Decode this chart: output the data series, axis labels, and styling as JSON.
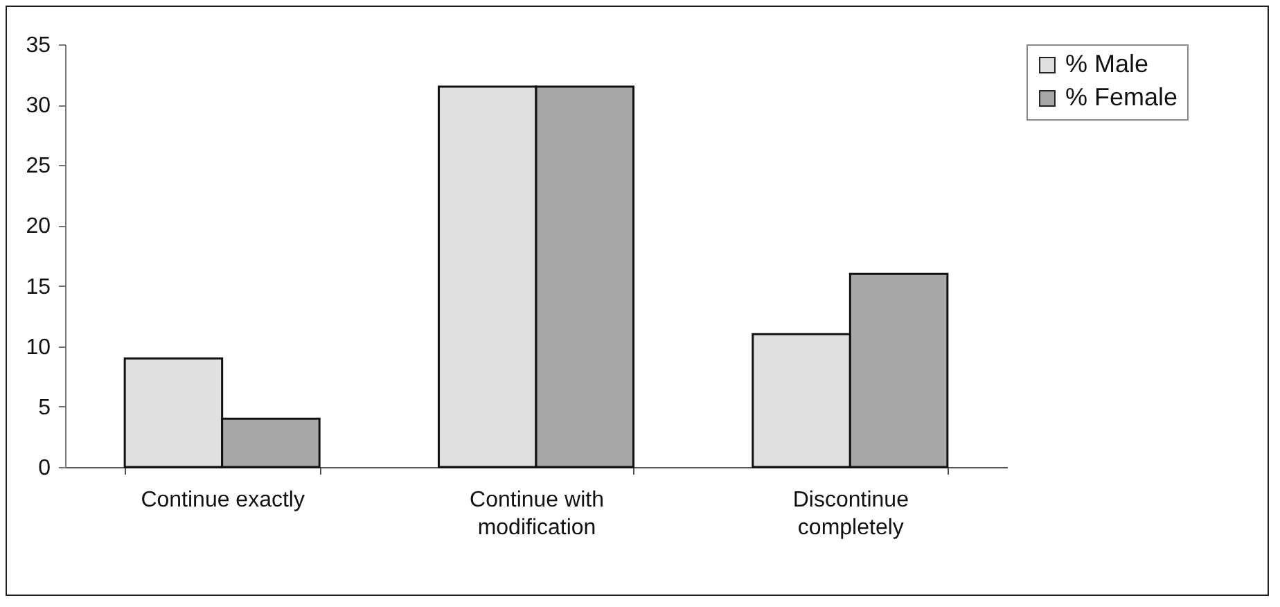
{
  "chart_data": {
    "type": "bar",
    "categories": [
      "Continue exactly",
      "Continue with modification",
      "Discontinue completely"
    ],
    "series": [
      {
        "name": "% Male",
        "color": "#e0e0e0",
        "values": [
          9,
          31.5,
          11
        ]
      },
      {
        "name": "% Female",
        "color": "#a8a8a8",
        "values": [
          4,
          31.5,
          16
        ]
      }
    ],
    "ylim": [
      0,
      35
    ],
    "yticks": [
      0,
      5,
      10,
      15,
      20,
      25,
      30,
      35
    ],
    "grid": false,
    "legend": "right"
  }
}
